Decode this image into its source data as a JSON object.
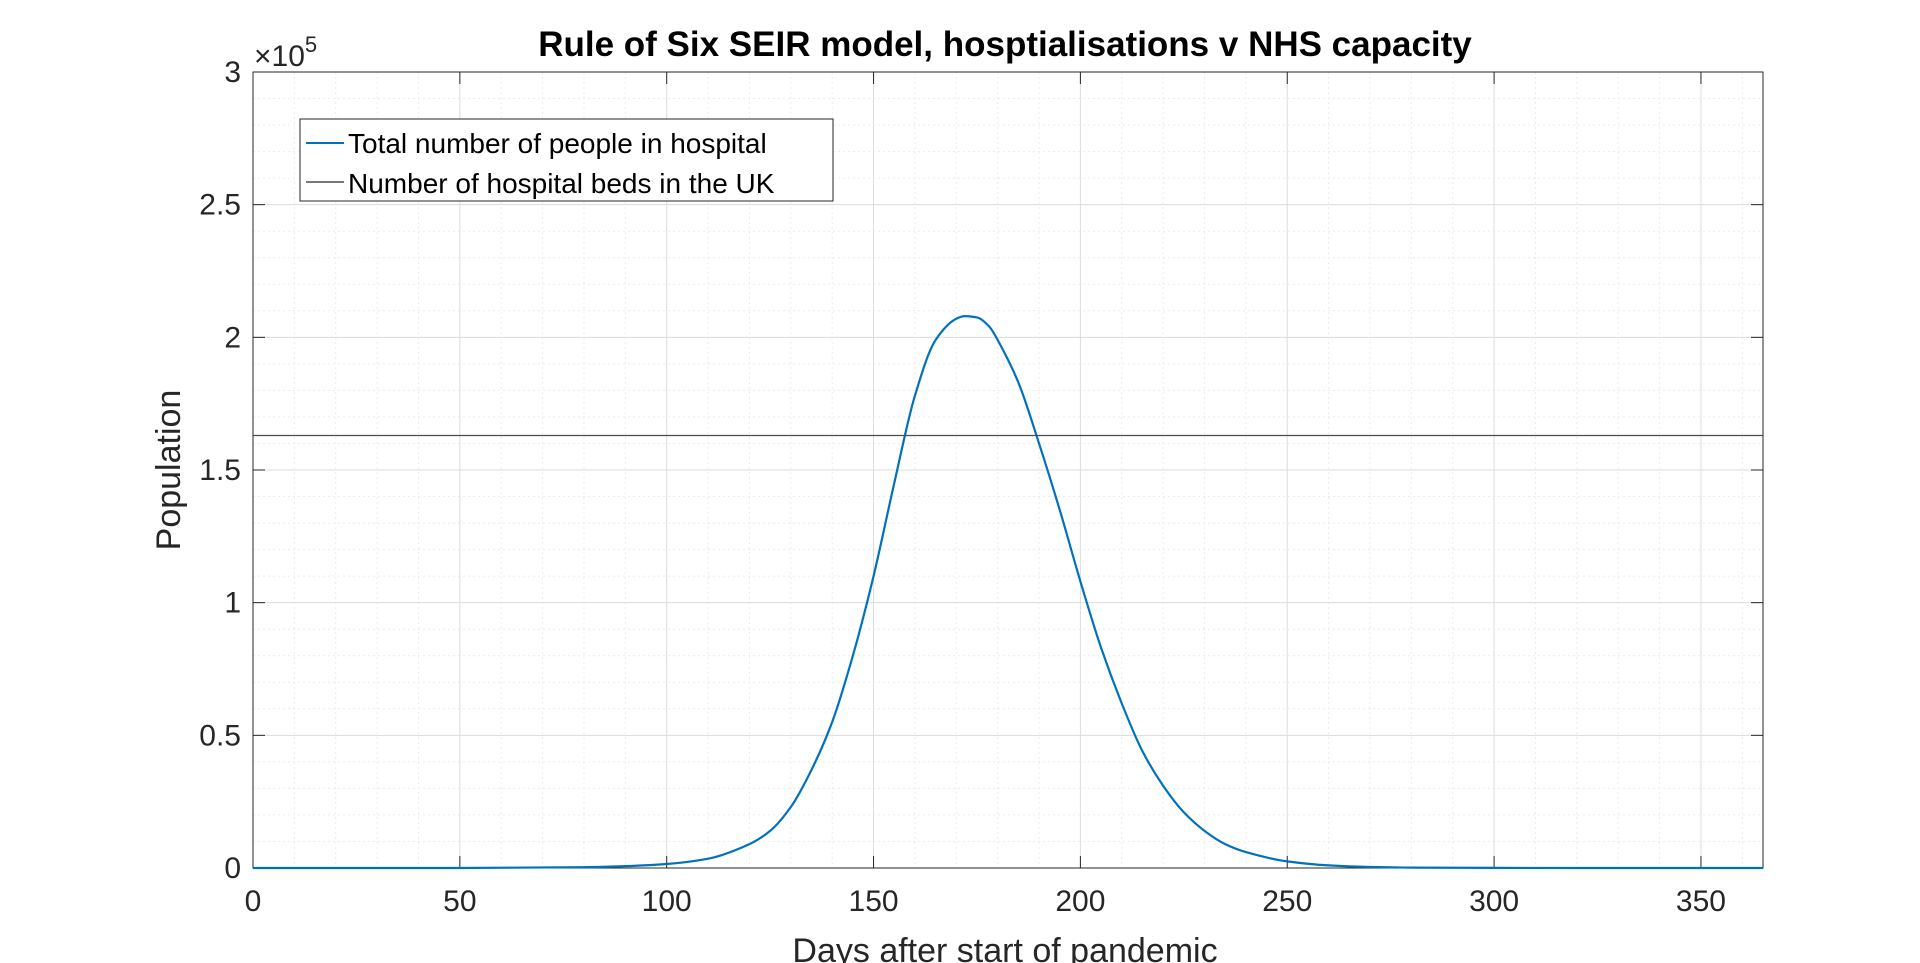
{
  "chart_data": {
    "type": "line",
    "title": "Rule of Six SEIR model, hosptialisations v NHS capacity",
    "xlabel": "Days after start of pandemic",
    "ylabel": "Population",
    "y_exponent_label": "×10",
    "y_exponent_value": "5",
    "xlim": [
      0,
      365
    ],
    "ylim": [
      0,
      300000
    ],
    "x_ticks": [
      0,
      50,
      100,
      150,
      200,
      250,
      300,
      350
    ],
    "x_tick_labels": [
      "0",
      "50",
      "100",
      "150",
      "200",
      "250",
      "300",
      "350"
    ],
    "y_ticks": [
      0,
      50000,
      100000,
      150000,
      200000,
      250000,
      300000
    ],
    "y_tick_labels": [
      "0",
      "0.5",
      "1",
      "1.5",
      "2",
      "2.5",
      "3"
    ],
    "grid": true,
    "minor_grid": true,
    "legend_position": "top-left",
    "series": [
      {
        "name": "Total number of people in hospital",
        "color": "#0072BD",
        "x": [
          0,
          50,
          80,
          90,
          100,
          110,
          120,
          125,
          130,
          135,
          140,
          145,
          150,
          155,
          160,
          165,
          170,
          172,
          175,
          178,
          180,
          185,
          190,
          195,
          200,
          205,
          210,
          215,
          220,
          225,
          230,
          235,
          240,
          250,
          260,
          270,
          280,
          300,
          320,
          365
        ],
        "y": [
          0,
          0,
          300,
          700,
          1500,
          3500,
          9000,
          14000,
          23000,
          37000,
          55000,
          80000,
          110000,
          145000,
          178000,
          199000,
          207000,
          208000,
          207500,
          204000,
          199000,
          183000,
          160000,
          135000,
          108000,
          83000,
          62000,
          44000,
          31000,
          21000,
          14000,
          9000,
          6000,
          2500,
          1000,
          400,
          150,
          50,
          0,
          0
        ]
      },
      {
        "name": "Number of hospital beds in the UK",
        "color": "#4d4d4d",
        "x": [
          0,
          365
        ],
        "y": [
          163000,
          163000
        ]
      }
    ]
  }
}
